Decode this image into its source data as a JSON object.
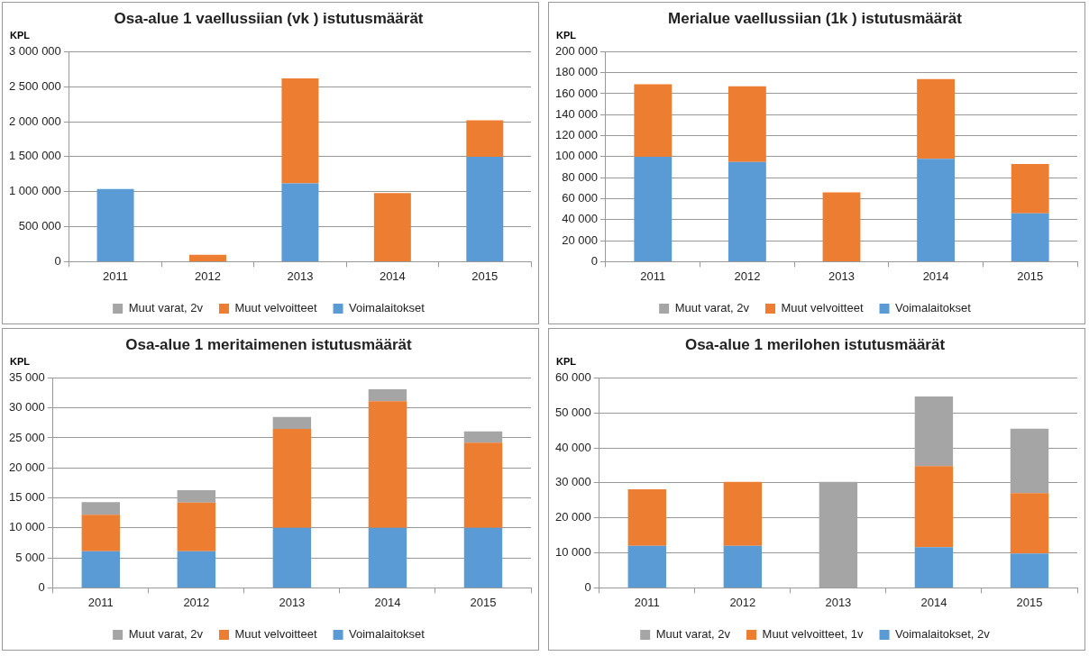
{
  "chart_data": [
    {
      "type": "bar",
      "title": "Osa-alue 1 vaellussiian (vk ) istutusmäärät",
      "ylabel": "KPL",
      "categories": [
        "2011",
        "2012",
        "2013",
        "2014",
        "2015"
      ],
      "stacked": true,
      "legend": "bottom",
      "grid": "y",
      "ylim": [
        0,
        3000000
      ],
      "yticks": [
        {
          "value": 0,
          "label": "0"
        },
        {
          "value": 500000,
          "label": "500 000"
        },
        {
          "value": 1000000,
          "label": "1 000 000"
        },
        {
          "value": 1500000,
          "label": "1 500 000"
        },
        {
          "value": 2000000,
          "label": "2 000 000"
        },
        {
          "value": 2500000,
          "label": "2 500 000"
        },
        {
          "value": 3000000,
          "label": "3 000 000"
        }
      ],
      "series": [
        {
          "name": "Voimalaitokset",
          "color": "#5b9bd5",
          "values": [
            1040000,
            null,
            1120000,
            null,
            1500000
          ]
        },
        {
          "name": "Muut velvoitteet",
          "color": "#ed7d31",
          "values": [
            null,
            100000,
            1500000,
            980000,
            520000
          ]
        },
        {
          "name": "Muut varat, 2v",
          "color": "#a5a5a5",
          "values": [
            null,
            null,
            null,
            null,
            null
          ]
        }
      ]
    },
    {
      "type": "bar",
      "title": "Merialue vaellussiian (1k ) istutusmäärät",
      "ylabel": "KPL",
      "categories": [
        "2011",
        "2012",
        "2013",
        "2014",
        "2015"
      ],
      "stacked": true,
      "legend": "bottom",
      "grid": "y",
      "ylim": [
        0,
        200000
      ],
      "yticks": [
        {
          "value": 0,
          "label": "0"
        },
        {
          "value": 20000,
          "label": "20 000"
        },
        {
          "value": 40000,
          "label": "40 000"
        },
        {
          "value": 60000,
          "label": "60 000"
        },
        {
          "value": 80000,
          "label": "80 000"
        },
        {
          "value": 100000,
          "label": "100 000"
        },
        {
          "value": 120000,
          "label": "120 000"
        },
        {
          "value": 140000,
          "label": "140 000"
        },
        {
          "value": 160000,
          "label": "160 000"
        },
        {
          "value": 180000,
          "label": "180 000"
        },
        {
          "value": 200000,
          "label": "200 000"
        }
      ],
      "series": [
        {
          "name": "Voimalaitokset",
          "color": "#5b9bd5",
          "values": [
            100000,
            95000,
            null,
            98000,
            46000
          ]
        },
        {
          "name": "Muut velvoitteet",
          "color": "#ed7d31",
          "values": [
            69000,
            72000,
            66000,
            76000,
            47000
          ]
        },
        {
          "name": "Muut varat, 2v",
          "color": "#a5a5a5",
          "values": [
            null,
            null,
            null,
            null,
            null
          ]
        }
      ]
    },
    {
      "type": "bar",
      "title": "Osa-alue 1 meritaimenen istutusmäärät",
      "ylabel": "KPL",
      "categories": [
        "2011",
        "2012",
        "2013",
        "2014",
        "2015"
      ],
      "stacked": true,
      "legend": "bottom",
      "grid": "y",
      "ylim": [
        0,
        35000
      ],
      "yticks": [
        {
          "value": 0,
          "label": "0"
        },
        {
          "value": 5000,
          "label": "5 000"
        },
        {
          "value": 10000,
          "label": "10 000"
        },
        {
          "value": 15000,
          "label": "15 000"
        },
        {
          "value": 20000,
          "label": "20 000"
        },
        {
          "value": 25000,
          "label": "25 000"
        },
        {
          "value": 30000,
          "label": "30 000"
        },
        {
          "value": 35000,
          "label": "35 000"
        }
      ],
      "series": [
        {
          "name": "Voimalaitokset",
          "color": "#5b9bd5",
          "values": [
            6100,
            6100,
            10000,
            10000,
            10000
          ]
        },
        {
          "name": "Muut velvoitteet",
          "color": "#ed7d31",
          "values": [
            6100,
            8100,
            16500,
            21100,
            14200
          ]
        },
        {
          "name": "Muut varat, 2v",
          "color": "#a5a5a5",
          "values": [
            2100,
            2100,
            2000,
            2000,
            1900
          ]
        }
      ]
    },
    {
      "type": "bar",
      "title": "Osa-alue 1 merilohen istutusmäärät",
      "ylabel": "KPL",
      "categories": [
        "2011",
        "2012",
        "2013",
        "2014",
        "2015"
      ],
      "stacked": true,
      "legend": "bottom",
      "grid": "y",
      "ylim": [
        0,
        60000
      ],
      "yticks": [
        {
          "value": 0,
          "label": "0"
        },
        {
          "value": 10000,
          "label": "10 000"
        },
        {
          "value": 20000,
          "label": "20 000"
        },
        {
          "value": 30000,
          "label": "30 000"
        },
        {
          "value": 40000,
          "label": "40 000"
        },
        {
          "value": 50000,
          "label": "50 000"
        },
        {
          "value": 60000,
          "label": "60 000"
        }
      ],
      "series": [
        {
          "name": "Voimalaitokset, 2v",
          "color": "#5b9bd5",
          "values": [
            12000,
            12000,
            null,
            11600,
            9800
          ]
        },
        {
          "name": "Muut velvoitteet, 1v",
          "color": "#ed7d31",
          "values": [
            16200,
            18300,
            null,
            23200,
            17300
          ]
        },
        {
          "name": "Muut varat, 2v",
          "color": "#a5a5a5",
          "values": [
            null,
            null,
            30300,
            19900,
            18400
          ]
        }
      ]
    }
  ]
}
